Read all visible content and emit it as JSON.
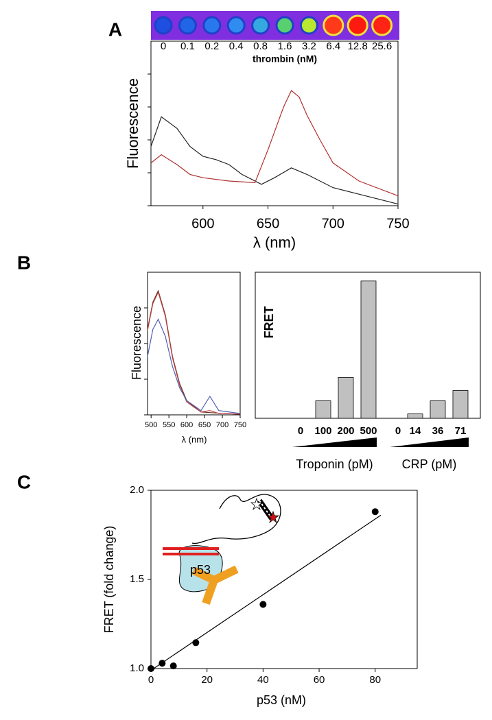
{
  "chart_data": [
    {
      "panel": "A",
      "type": "line",
      "xlabel": "λ (nm)",
      "ylabel": "Fluorescence",
      "heatmap": {
        "categories": [
          "0",
          "0.1",
          "0.2",
          "0.4",
          "0.8",
          "1.6",
          "3.2",
          "6.4",
          "12.8",
          "25.6"
        ],
        "colors": [
          "#1f4fe0",
          "#2266e8",
          "#2a78ee",
          "#2f8cf0",
          "#35a8e0",
          "#58d070",
          "#b8e830",
          "#ff3a1a",
          "#ff1a10",
          "#ff2414"
        ],
        "label": "thrombin (nM)"
      },
      "xlim": [
        560,
        750
      ],
      "xticks": [
        600,
        650,
        700,
        750
      ],
      "ylim": [
        0,
        100
      ],
      "yticks": [
        0,
        20,
        40,
        60,
        80
      ],
      "series": [
        {
          "color": "#222222",
          "x": [
            560,
            568,
            580,
            590,
            600,
            610,
            620,
            630,
            645,
            655,
            668,
            680,
            700,
            720,
            750
          ],
          "values": [
            36,
            54,
            47,
            36,
            30,
            28,
            25,
            19,
            13,
            17,
            23,
            19,
            11,
            7,
            1
          ]
        },
        {
          "color": "#b03030",
          "x": [
            560,
            568,
            580,
            590,
            600,
            620,
            640,
            650,
            656,
            662,
            668,
            674,
            680,
            690,
            700,
            720,
            750
          ],
          "values": [
            26,
            31,
            25,
            19,
            17,
            15,
            14,
            34,
            47,
            60,
            70,
            66,
            55,
            40,
            26,
            15,
            6
          ]
        }
      ]
    },
    {
      "panel": "B",
      "type": "line",
      "xlabel": "λ (nm)",
      "ylabel": "Fluorescence",
      "xlim": [
        490,
        750
      ],
      "xticks": [
        500,
        550,
        600,
        650,
        700,
        750
      ],
      "ylim": [
        0,
        100
      ],
      "yticks": [
        0,
        25,
        50,
        75
      ],
      "series": [
        {
          "color": "#5a3020",
          "x": [
            490,
            505,
            520,
            540,
            560,
            580,
            600,
            640,
            700,
            750
          ],
          "values": [
            60,
            79,
            87,
            70,
            41,
            22,
            10,
            2,
            1,
            0.5
          ]
        },
        {
          "color": "#c04040",
          "x": [
            490,
            505,
            520,
            540,
            560,
            580,
            600,
            640,
            665,
            690,
            750
          ],
          "values": [
            59,
            78,
            86,
            69,
            40,
            21,
            9,
            2,
            3,
            1,
            0.5
          ]
        },
        {
          "color": "#5060b0",
          "x": [
            490,
            505,
            520,
            540,
            560,
            580,
            600,
            640,
            665,
            690,
            750
          ],
          "values": [
            41,
            60,
            67,
            55,
            34,
            19,
            10,
            3,
            13,
            3,
            1
          ]
        }
      ]
    },
    {
      "type": "bar",
      "ylabel": "FRET",
      "ylim": [
        0,
        100
      ],
      "color": "#c0c0c0",
      "series": [
        {
          "name": "Troponin (pM)",
          "categories": [
            "0",
            "100",
            "200",
            "500"
          ],
          "values": [
            0,
            12,
            28,
            94
          ]
        },
        {
          "name": "CRP (pM)",
          "categories": [
            "0",
            "14",
            "36",
            "71"
          ],
          "values": [
            0,
            3,
            12,
            19
          ]
        }
      ]
    },
    {
      "panel": "C",
      "type": "scatter",
      "xlabel": "p53 (nM)",
      "ylabel": "FRET (fold change)",
      "inset_label": "p53",
      "xlim": [
        0,
        95
      ],
      "xticks": [
        0,
        20,
        40,
        60,
        80
      ],
      "ylim": [
        1.0,
        2.0
      ],
      "yticks": [
        {
          "value": 1.0,
          "label": "1.0"
        },
        1.5,
        {
          "value": 2.0,
          "label": "2.0"
        }
      ],
      "series": [
        {
          "type": "scatter",
          "color": "#000000",
          "x": [
            0,
            4,
            8,
            16,
            40,
            80
          ],
          "values": [
            1.0,
            1.03,
            1.015,
            1.145,
            1.36,
            1.88
          ]
        },
        {
          "type": "line",
          "color": "#000000",
          "x": [
            0,
            82
          ],
          "values": [
            0.99,
            1.86
          ]
        }
      ]
    }
  ]
}
